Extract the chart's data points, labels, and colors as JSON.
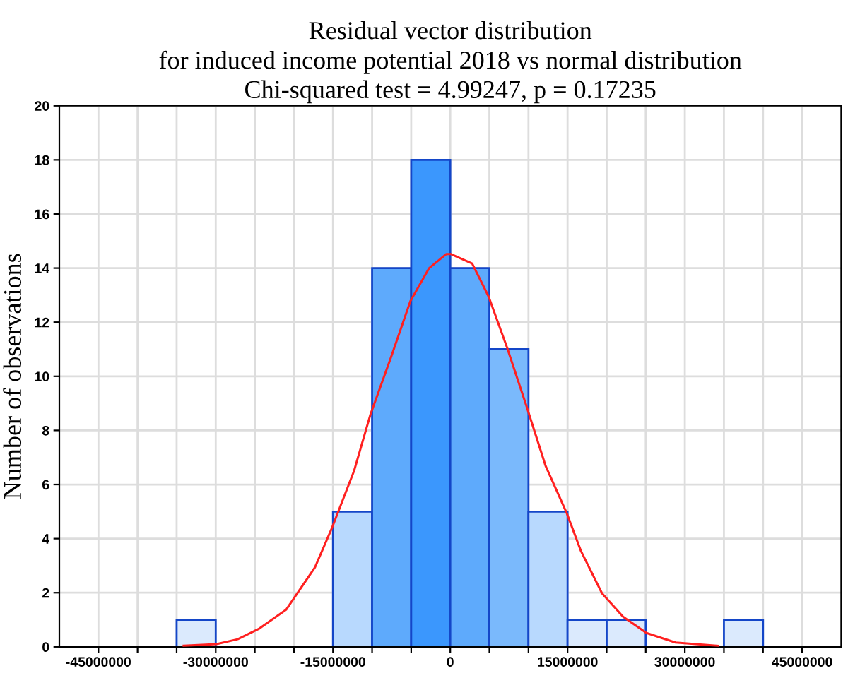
{
  "chart_data": {
    "type": "histogram",
    "title": "Residual vector distribution\nfor induced income potential 2018 vs normal distribution\nChi-squared test = 4.99247, p = 0.17235",
    "ylabel": "Number of observations",
    "bins": [
      -35000000,
      -30000000,
      -25000000,
      -20000000,
      -15000000,
      -10000000,
      -5000000,
      0,
      5000000,
      10000000,
      15000000,
      20000000,
      25000000,
      30000000,
      35000000,
      40000000
    ],
    "values": [
      1,
      0,
      0,
      0,
      5,
      14,
      18,
      14,
      11,
      5,
      1,
      1,
      0,
      0,
      1
    ],
    "colors": [
      "#dbeafd",
      "#dbeafd",
      "#dbeafd",
      "#dbeafd",
      "#b8d9fe",
      "#5eaafc",
      "#3b97fd",
      "#5eaafc",
      "#7ab9fc",
      "#b8d9fe",
      "#dbeafd",
      "#dbeafd",
      "#dbeafd",
      "#dbeafd",
      "#dbeafd"
    ],
    "series": [
      {
        "type": "line",
        "color": "#ff2020",
        "x": [
          -34100000,
          -29900000,
          -27200000,
          -24400000,
          -21000000,
          -17300000,
          -15100000,
          -12300000,
          -10200000,
          -7500000,
          -5100000,
          -2700000,
          -500000,
          50000,
          2800000,
          4900000,
          7300000,
          9700000,
          12200000,
          14900000,
          16700000,
          19400000,
          22100000,
          25100000,
          28800000,
          34200000
        ],
        "values": [
          0.04,
          0.1,
          0.28,
          0.68,
          1.37,
          2.94,
          4.42,
          6.51,
          8.6,
          10.77,
          12.78,
          14.0,
          14.52,
          14.52,
          14.17,
          12.95,
          11.03,
          8.94,
          6.68,
          4.94,
          3.55,
          1.98,
          1.11,
          0.51,
          0.16,
          0.04
        ]
      }
    ],
    "xlim": [
      -50000000,
      50000000
    ],
    "xticks": [
      -45000000,
      {
        "value": -40000000,
        "label": null
      },
      {
        "value": -35000000,
        "label": null
      },
      -30000000,
      {
        "value": -25000000,
        "label": null
      },
      {
        "value": -20000000,
        "label": null
      },
      -15000000,
      {
        "value": -10000000,
        "label": null
      },
      {
        "value": -5000000,
        "label": null
      },
      0,
      {
        "value": 5000000,
        "label": null
      },
      {
        "value": 10000000,
        "label": null
      },
      15000000,
      {
        "value": 20000000,
        "label": null
      },
      {
        "value": 25000000,
        "label": null
      },
      30000000,
      {
        "value": 35000000,
        "label": null
      },
      {
        "value": 40000000,
        "label": null
      },
      45000000
    ],
    "ylim": [
      0,
      20
    ],
    "yticks": [
      0,
      2,
      4,
      6,
      8,
      10,
      12,
      14,
      16,
      18,
      20
    ],
    "grid": true,
    "marker": "none",
    "line_style": "solid"
  }
}
